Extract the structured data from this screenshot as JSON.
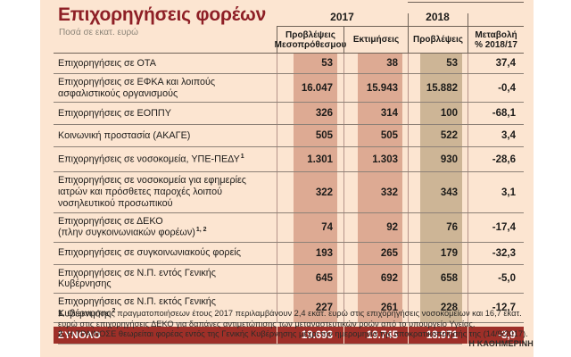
{
  "title": "Επιχορηγήσεις φορέων",
  "subtitle": "Ποσά σε εκατ. ευρώ",
  "header": {
    "year_2017": "2017",
    "year_2018": "2018",
    "col_a": "Προβλέψεις Μεσοπρόθεσμου",
    "col_b": "Εκτιμήσεις",
    "col_c": "Προβλέψεις",
    "col_d": "Μεταβολή % 2018/17"
  },
  "rows": [
    {
      "label": "Επιχορηγήσεις σε ΟΤΑ",
      "values": [
        "53",
        "38",
        "53",
        "37,4"
      ]
    },
    {
      "label": "Επιχορηγήσεις σε ΕΦΚΑ και λοιπούς ασφαλιστικούς οργανισμούς",
      "values": [
        "16.047",
        "15.943",
        "15.882",
        "-0,4"
      ]
    },
    {
      "label": "Επιχορηγήσεις σε ΕΟΠΠΥ",
      "values": [
        "326",
        "314",
        "100",
        "-68,1"
      ]
    },
    {
      "label": "Κοινωνική προστασία (ΑΚΑΓΕ)",
      "values": [
        "505",
        "505",
        "522",
        "3,4"
      ]
    },
    {
      "label": "Επιχορηγήσεις σε νοσοκομεία, ΥΠΕ-ΠΕΔΥ",
      "sup": "1",
      "values": [
        "1.301",
        "1.303",
        "930",
        "-28,6"
      ]
    },
    {
      "label": "Επιχορηγήσεις σε νοσοκομεία για εφημερίες ιατρών και πρόσθετες παροχές λοιπού νοσηλευτικού προσωπικού",
      "values": [
        "322",
        "332",
        "343",
        "3,1"
      ]
    },
    {
      "label": "Επιχορηγήσεις σε ΔΕΚΟ",
      "label2": "(πλην συγκοινωνιακών φορέων)",
      "sup": "1, 2",
      "values": [
        "74",
        "92",
        "76",
        "-17,4"
      ]
    },
    {
      "label": "Επιχορηγήσεις σε συγκοινωνιακούς φορείς",
      "values": [
        "193",
        "265",
        "179",
        "-32,3"
      ]
    },
    {
      "label": "Επιχορηγήσεις σε Ν.Π. εντός Γενικής Κυβέρνησης",
      "values": [
        "645",
        "692",
        "658",
        "-5,0"
      ]
    },
    {
      "label": "Επιχορηγήσεις σε Ν.Π. εκτός Γενικής Κυβέρνησης",
      "sup": "2",
      "values": [
        "227",
        "261",
        "228",
        "-12,7"
      ]
    }
  ],
  "total": {
    "label": "ΣΥΝΟΛΟ",
    "values": [
      "19.693",
      "19.745",
      "18.971",
      "-3,9"
    ]
  },
  "footnotes": [
    {
      "num": "1.",
      "text": " Οι εκτιμήσεις πραγματοποιήσεων έτους 2017 περιλαμβάνουν 2,4 εκατ. ευρώ στις επιχορηγήσεις νοσοκομείων και 16,7 εκατ. ευρώ στις επιχορηγήσεις ΔΕΚΟ για δαπάνες αντιμετώπισης των μεταναστευτικών ροών από το υπουργείο Υγείας."
    },
    {
      "num": "2.",
      "text": " Η ΤΡΑΙΝΟΣΕ θεωρείται φορέας εντός της Γενικής Κυβέρνησης μέχρι την ημερομηνία της αποκρατικοποίησής της (14/9/2017)."
    }
  ],
  "credit": "Η ΚΑΘΗΜΕΡΙΝΗ",
  "colors": {
    "background": "#fce5d1",
    "band_2017": "#ddaa93",
    "band_2018": "#cdb596",
    "total_row": "#9e2f28",
    "title": "#8e1f26"
  },
  "chart_data": {
    "type": "table",
    "title": "Επιχορηγήσεις φορέων",
    "subtitle": "Ποσά σε εκατ. ευρώ",
    "columns": [
      "2017 Προβλέψεις Μεσοπρόθεσμου",
      "2017 Εκτιμήσεις",
      "2018 Προβλέψεις",
      "Μεταβολή % 2018/17"
    ],
    "categories": [
      "Επιχορηγήσεις σε ΟΤΑ",
      "Επιχορηγήσεις σε ΕΦΚΑ και λοιπούς ασφαλιστικούς οργανισμούς",
      "Επιχορηγήσεις σε ΕΟΠΠΥ",
      "Κοινωνική προστασία (ΑΚΑΓΕ)",
      "Επιχορηγήσεις σε νοσοκομεία, ΥΠΕ-ΠΕΔΥ",
      "Επιχορηγήσεις σε νοσοκομεία για εφημερίες ιατρών και πρόσθετες παροχές λοιπού νοσηλευτικού προσωπικού",
      "Επιχορηγήσεις σε ΔΕΚΟ (πλην συγκοινωνιακών φορέων)",
      "Επιχορηγήσεις σε συγκοινωνιακούς φορείς",
      "Επιχορηγήσεις σε Ν.Π. εντός Γενικής Κυβέρνησης",
      "Επιχορηγήσεις σε Ν.Π. εκτός Γενικής Κυβέρνησης",
      "ΣΥΝΟΛΟ"
    ],
    "series": [
      {
        "name": "2017 Προβλέψεις Μεσοπρόθεσμου",
        "values": [
          53,
          16047,
          326,
          505,
          1301,
          322,
          74,
          193,
          645,
          227,
          19693
        ]
      },
      {
        "name": "2017 Εκτιμήσεις",
        "values": [
          38,
          15943,
          314,
          505,
          1303,
          332,
          92,
          265,
          692,
          261,
          19745
        ]
      },
      {
        "name": "2018 Προβλέψεις",
        "values": [
          53,
          15882,
          100,
          522,
          930,
          343,
          76,
          179,
          658,
          228,
          18971
        ]
      },
      {
        "name": "Μεταβολή % 2018/17",
        "values": [
          37.4,
          -0.4,
          -68.1,
          3.4,
          -28.6,
          3.1,
          -17.4,
          -32.3,
          -5.0,
          -12.7,
          -3.9
        ]
      }
    ]
  }
}
